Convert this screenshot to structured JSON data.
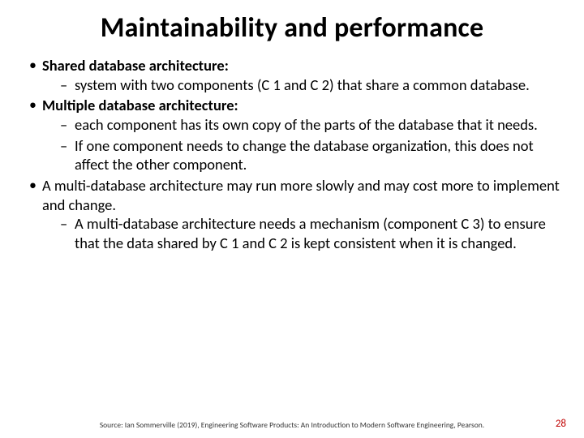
{
  "colors": {
    "background": "#ffffff",
    "text": "#000000",
    "page_number": "#c00000",
    "source_text": "#333333"
  },
  "typography": {
    "title_fontsize": 34,
    "title_weight": 700,
    "body_fontsize": 18.5,
    "body_lineheight": 1.28,
    "source_fontsize": 9.5,
    "pagenum_fontsize": 13,
    "font_family": "Calibri"
  },
  "title": "Maintainability and performance",
  "bullets": [
    {
      "label": "Shared database architecture:",
      "bold": true,
      "children": [
        {
          "text": "system with two components (C 1 and C 2) that share a common database."
        }
      ]
    },
    {
      "label": "Multiple database architecture:",
      "bold": true,
      "children": [
        {
          "text": "each component has its own copy of the parts of the database that it needs."
        },
        {
          "text": "If one component needs to change the database organization, this does not affect the other component."
        }
      ]
    },
    {
      "label": "A multi-database architecture may run more slowly and may cost more to implement and change.",
      "bold": false,
      "children": [
        {
          "text": "A multi-database architecture needs a mechanism (component C 3) to ensure that the data shared by C 1 and C 2 is kept consistent when it is changed."
        }
      ]
    }
  ],
  "source": "Source: Ian Sommerville (2019), Engineering Software Products: An Introduction to Modern Software Engineering, Pearson.",
  "page_number": "28"
}
